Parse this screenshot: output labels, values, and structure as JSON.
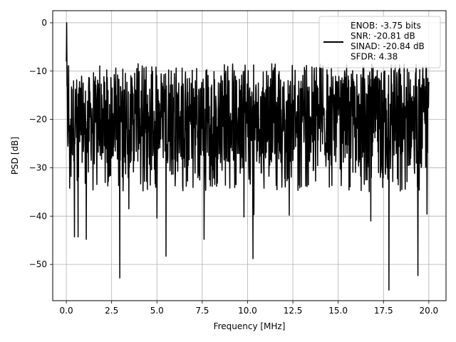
{
  "chart_data": {
    "type": "line",
    "xlabel": "Frequency [MHz]",
    "ylabel": "PSD [dB]",
    "xlim": [
      -0.75,
      20.95
    ],
    "ylim": [
      -57.5,
      2.5
    ],
    "xticks": [
      0.0,
      2.5,
      5.0,
      7.5,
      10.0,
      12.5,
      15.0,
      17.5,
      20.0
    ],
    "xtick_labels": [
      "0.0",
      "2.5",
      "5.0",
      "7.5",
      "10.0",
      "12.5",
      "15.0",
      "17.5",
      "20.0"
    ],
    "yticks": [
      0,
      -10,
      -20,
      -30,
      -40,
      -50
    ],
    "ytick_labels": [
      "0",
      "−10",
      "−20",
      "−30",
      "−40",
      "−50"
    ],
    "grid": true,
    "legend_position": "upper right",
    "series": [
      {
        "name": "ENOB: -3.75 bits\nSNR: -20.81 dB\nSINAD: -20.84 dB\nSFDR: 4.38",
        "color": "#000000",
        "x_range": [
          0.0,
          20.0
        ],
        "peak": {
          "x": 0.02,
          "y": 0.0
        },
        "typical_range": [
          -29.0,
          -11.0
        ],
        "noise_floor_mean": -20.0,
        "max_excursion_outside_peak": -6.8,
        "notable_dips": [
          {
            "x": 0.45,
            "y": -44.3
          },
          {
            "x": 0.65,
            "y": -44.3
          },
          {
            "x": 1.1,
            "y": -44.8
          },
          {
            "x": 2.95,
            "y": -52.8
          },
          {
            "x": 3.45,
            "y": -38.5
          },
          {
            "x": 5.0,
            "y": -40.4
          },
          {
            "x": 5.5,
            "y": -48.3
          },
          {
            "x": 7.6,
            "y": -44.8
          },
          {
            "x": 9.8,
            "y": -40.2
          },
          {
            "x": 10.3,
            "y": -48.8
          },
          {
            "x": 10.35,
            "y": -39.7
          },
          {
            "x": 12.3,
            "y": -39.8
          },
          {
            "x": 16.8,
            "y": -41.0
          },
          {
            "x": 17.8,
            "y": -55.3
          },
          {
            "x": 19.4,
            "y": -52.3
          },
          {
            "x": 19.9,
            "y": -39.6
          }
        ]
      }
    ]
  }
}
